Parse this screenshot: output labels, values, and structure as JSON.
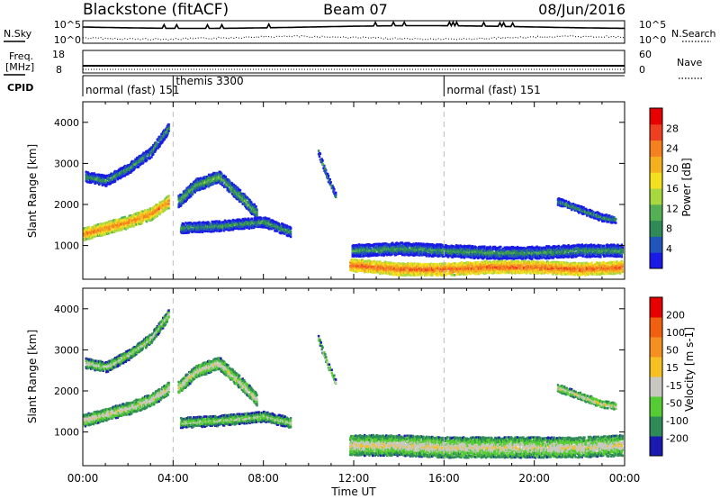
{
  "header": {
    "station": "Blackstone (fitACF)",
    "beam": "Beam 07",
    "date": "08/Jun/2016"
  },
  "summary": {
    "nsky_label": "N.Sky",
    "nsearch_label": "N.Search",
    "noise_ticks_left": [
      "10^5",
      "10^0"
    ],
    "noise_ticks_right": [
      "10^5",
      "10^0"
    ],
    "freq_label": "Freq.",
    "freq_unit": "[MHz]",
    "freq_ticks": [
      "18",
      "8"
    ],
    "nave_label": "Nave",
    "nave_ticks": [
      "60",
      "0"
    ],
    "cpid_label": "CPID",
    "cpid_segments": [
      {
        "label": "normal (fast) 151",
        "start": 0,
        "end": 4
      },
      {
        "label": "themis 3300",
        "start": 4,
        "end": 16
      },
      {
        "label": "normal (fast) 151",
        "start": 16,
        "end": 24
      }
    ]
  },
  "axes": {
    "xlabel": "Time UT",
    "xticks": [
      "00:00",
      "04:00",
      "08:00",
      "12:00",
      "16:00",
      "20:00",
      "00:00"
    ],
    "ylabel": "Slant Range [km]",
    "yticks": [
      "1000",
      "2000",
      "3000",
      "4000"
    ]
  },
  "power_colorbar": {
    "label": "Power [dB]",
    "ticks": [
      "4",
      "8",
      "12",
      "16",
      "20",
      "24",
      "28"
    ],
    "colors": [
      "#1a1ae6",
      "#2255bb",
      "#2e8b57",
      "#55b055",
      "#a8d840",
      "#f5e020",
      "#f5b020",
      "#f58020",
      "#ee4020",
      "#e60000"
    ]
  },
  "velocity_colorbar": {
    "label": "Velocity [m s-1]",
    "ticks": [
      "200",
      "100",
      "50",
      "15",
      "-15",
      "-50",
      "-100",
      "-200"
    ],
    "colors": [
      "#1a1ab0",
      "#2e8b57",
      "#55cc33",
      "#c8c8c0",
      "#f5c020",
      "#f59020",
      "#f06010",
      "#e60000"
    ]
  },
  "chart_data": [
    {
      "type": "heatmap",
      "title": "Power",
      "xlabel": "Time UT",
      "ylabel": "Slant Range [km]",
      "xlim": [
        0,
        24
      ],
      "ylim": [
        180,
        4500
      ],
      "colorbar": "Power [dB]",
      "bands": [
        {
          "x": [
            0,
            1,
            2,
            3,
            3.8
          ],
          "y": [
            1300,
            1450,
            1600,
            1800,
            2100
          ],
          "width": 300,
          "value": 24
        },
        {
          "x": [
            0.1,
            1,
            2,
            3,
            3.8
          ],
          "y": [
            2700,
            2600,
            2900,
            3300,
            3900
          ],
          "width": 250,
          "value": 10
        },
        {
          "x": [
            4.2,
            5,
            6,
            7,
            7.7
          ],
          "y": [
            2100,
            2500,
            2700,
            2200,
            1800
          ],
          "width": 300,
          "value": 12
        },
        {
          "x": [
            4.3,
            6,
            8,
            9.2
          ],
          "y": [
            1450,
            1500,
            1600,
            1350
          ],
          "width": 250,
          "value": 10
        },
        {
          "x": [
            11.8,
            14,
            16,
            18,
            20,
            22,
            23.9
          ],
          "y": [
            550,
            450,
            450,
            500,
            500,
            450,
            500
          ],
          "width": 300,
          "value": 26
        },
        {
          "x": [
            11.9,
            14,
            16,
            18,
            20,
            22,
            23.9
          ],
          "y": [
            900,
            950,
            900,
            850,
            850,
            900,
            900
          ],
          "width": 300,
          "value": 10
        },
        {
          "x": [
            10.4,
            10.8,
            11.2
          ],
          "y": [
            3300,
            2700,
            2200
          ],
          "width": 150,
          "value": 10
        },
        {
          "x": [
            21,
            22,
            23,
            23.6
          ],
          "y": [
            2100,
            1900,
            1700,
            1650
          ],
          "width": 180,
          "value": 10
        }
      ]
    },
    {
      "type": "heatmap",
      "title": "Velocity",
      "xlabel": "Time UT",
      "ylabel": "Slant Range [km]",
      "xlim": [
        0,
        24
      ],
      "ylim": [
        180,
        4500
      ],
      "colorbar": "Velocity [m s-1]",
      "bands": [
        {
          "x": [
            0,
            1,
            2,
            3,
            3.8
          ],
          "y": [
            1300,
            1450,
            1600,
            1800,
            2100
          ],
          "width": 300,
          "value": 0
        },
        {
          "x": [
            0.1,
            1,
            2,
            3,
            3.8
          ],
          "y": [
            2700,
            2600,
            2900,
            3300,
            3900
          ],
          "width": 250,
          "value": -30
        },
        {
          "x": [
            4.2,
            5,
            6,
            7,
            7.7
          ],
          "y": [
            2100,
            2500,
            2700,
            2200,
            1800
          ],
          "width": 300,
          "value": 0
        },
        {
          "x": [
            4.3,
            6,
            8,
            9.2
          ],
          "y": [
            1250,
            1300,
            1400,
            1250
          ],
          "width": 250,
          "value": -40
        },
        {
          "x": [
            11.8,
            14,
            16,
            18,
            20,
            22,
            23.9
          ],
          "y": [
            700,
            700,
            650,
            650,
            650,
            650,
            700
          ],
          "width": 500,
          "value": 0
        },
        {
          "x": [
            10.4,
            10.8,
            11.2
          ],
          "y": [
            3300,
            2700,
            2200
          ],
          "width": 150,
          "value": -30
        },
        {
          "x": [
            21,
            22,
            23,
            23.6
          ],
          "y": [
            2100,
            1900,
            1700,
            1650
          ],
          "width": 180,
          "value": 0
        }
      ]
    }
  ]
}
